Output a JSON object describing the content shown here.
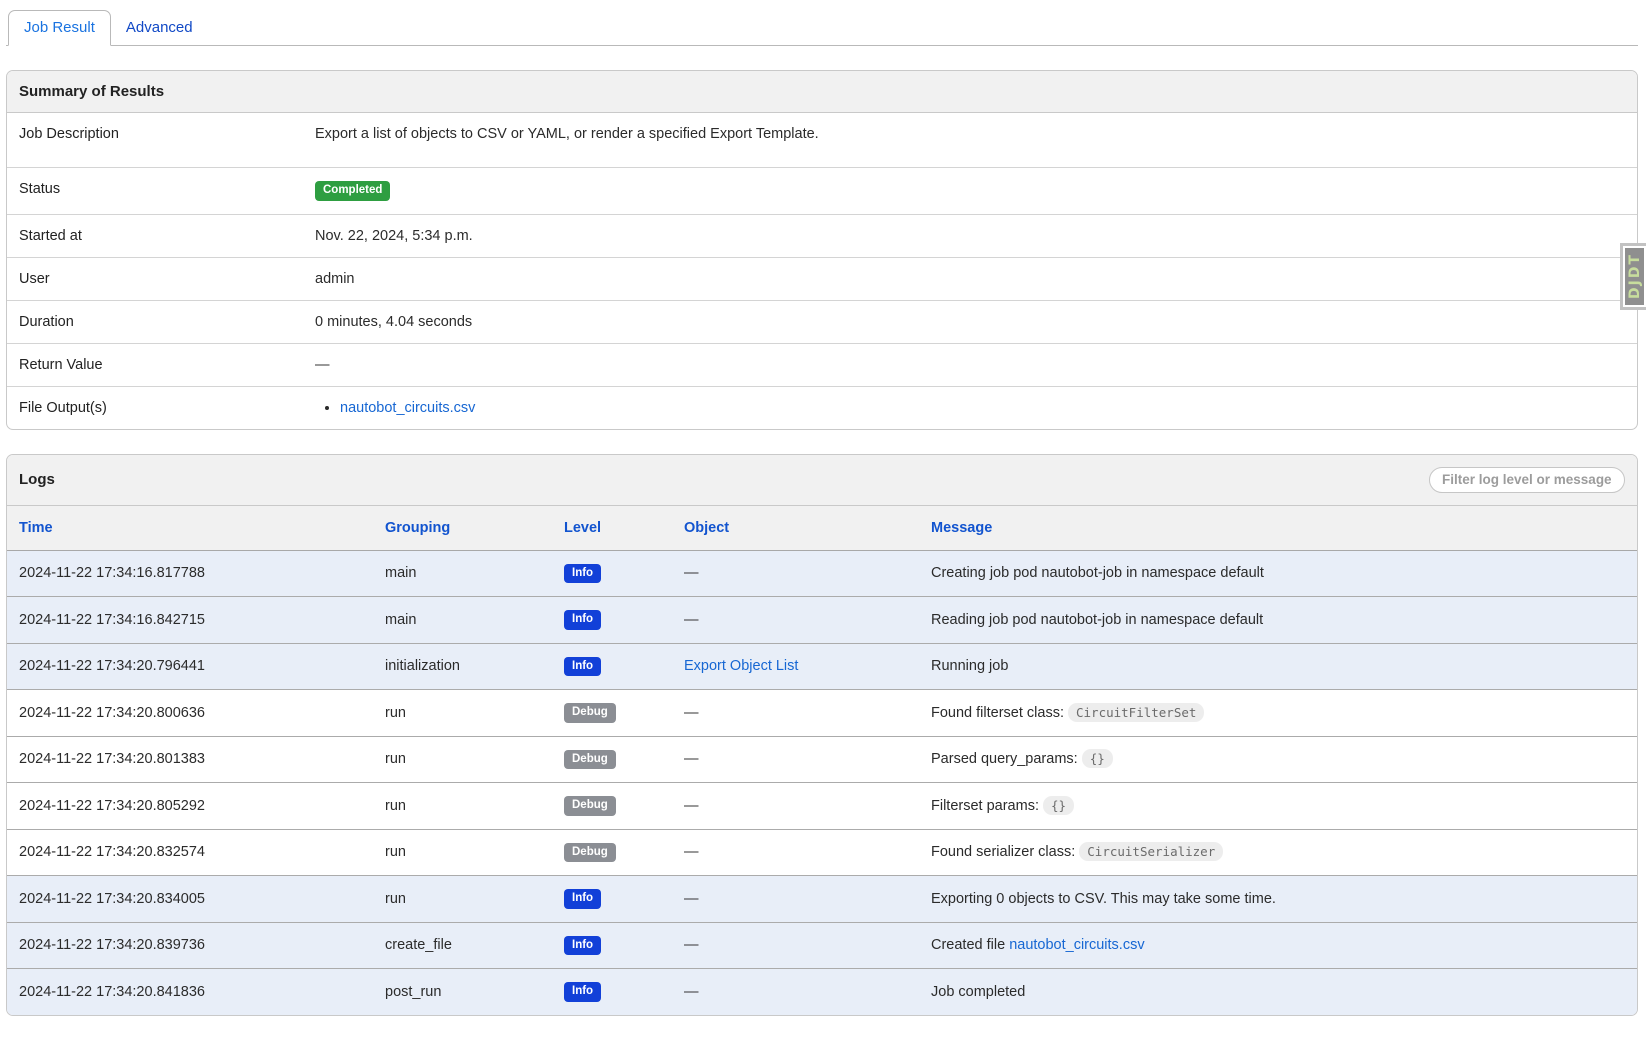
{
  "tabs": [
    {
      "label": "Job Result",
      "active": true
    },
    {
      "label": "Advanced",
      "active": false
    }
  ],
  "summary": {
    "title": "Summary of Results",
    "rows": [
      {
        "label": "Job Description",
        "type": "text",
        "value": "Export a list of objects to CSV or YAML, or render a specified Export Template.",
        "tall": true
      },
      {
        "label": "Status",
        "type": "badge",
        "value": "Completed"
      },
      {
        "label": "Started at",
        "type": "text",
        "value": "Nov. 22, 2024, 5:34 p.m."
      },
      {
        "label": "User",
        "type": "text",
        "value": "admin"
      },
      {
        "label": "Duration",
        "type": "text",
        "value": "0 minutes, 4.04 seconds"
      },
      {
        "label": "Return Value",
        "type": "dash",
        "value": "—"
      },
      {
        "label": "File Output(s)",
        "type": "files",
        "files": [
          "nautobot_circuits.csv"
        ]
      }
    ]
  },
  "logs": {
    "title": "Logs",
    "filter_placeholder": "Filter log level or message",
    "columns": [
      "Time",
      "Grouping",
      "Level",
      "Object",
      "Message"
    ],
    "entries": [
      {
        "time": "2024-11-22 17:34:16.817788",
        "grouping": "main",
        "level": "Info",
        "object": {
          "t": "dash"
        },
        "message": [
          {
            "t": "text",
            "v": "Creating job pod nautobot-job in namespace default"
          }
        ]
      },
      {
        "time": "2024-11-22 17:34:16.842715",
        "grouping": "main",
        "level": "Info",
        "object": {
          "t": "dash"
        },
        "message": [
          {
            "t": "text",
            "v": "Reading job pod nautobot-job in namespace default"
          }
        ]
      },
      {
        "time": "2024-11-22 17:34:20.796441",
        "grouping": "initialization",
        "level": "Info",
        "object": {
          "t": "link",
          "v": "Export Object List"
        },
        "message": [
          {
            "t": "text",
            "v": "Running job"
          }
        ]
      },
      {
        "time": "2024-11-22 17:34:20.800636",
        "grouping": "run",
        "level": "Debug",
        "object": {
          "t": "dash"
        },
        "message": [
          {
            "t": "text",
            "v": "Found filterset class: "
          },
          {
            "t": "code",
            "v": "CircuitFilterSet"
          }
        ]
      },
      {
        "time": "2024-11-22 17:34:20.801383",
        "grouping": "run",
        "level": "Debug",
        "object": {
          "t": "dash"
        },
        "message": [
          {
            "t": "text",
            "v": "Parsed query_params: "
          },
          {
            "t": "code",
            "v": "{}"
          }
        ]
      },
      {
        "time": "2024-11-22 17:34:20.805292",
        "grouping": "run",
        "level": "Debug",
        "object": {
          "t": "dash"
        },
        "message": [
          {
            "t": "text",
            "v": "Filterset params: "
          },
          {
            "t": "code",
            "v": "{}"
          }
        ]
      },
      {
        "time": "2024-11-22 17:34:20.832574",
        "grouping": "run",
        "level": "Debug",
        "object": {
          "t": "dash"
        },
        "message": [
          {
            "t": "text",
            "v": "Found serializer class: "
          },
          {
            "t": "code",
            "v": "CircuitSerializer"
          }
        ]
      },
      {
        "time": "2024-11-22 17:34:20.834005",
        "grouping": "run",
        "level": "Info",
        "object": {
          "t": "dash"
        },
        "message": [
          {
            "t": "text",
            "v": "Exporting 0 objects to CSV. This may take some time."
          }
        ]
      },
      {
        "time": "2024-11-22 17:34:20.839736",
        "grouping": "create_file",
        "level": "Info",
        "object": {
          "t": "dash"
        },
        "message": [
          {
            "t": "text",
            "v": "Created file "
          },
          {
            "t": "link",
            "v": "nautobot_circuits.csv"
          }
        ]
      },
      {
        "time": "2024-11-22 17:34:20.841836",
        "grouping": "post_run",
        "level": "Info",
        "object": {
          "t": "dash"
        },
        "message": [
          {
            "t": "text",
            "v": "Job completed"
          }
        ]
      }
    ]
  },
  "djdt": {
    "label": "DJDT"
  },
  "colors": {
    "status_completed": "#2e9e41",
    "level_info": "#1240d8",
    "level_debug": "#8b8e94",
    "info_row_bg": "#e8eef8",
    "link": "#1767d3",
    "active_tab": "#1a73e0"
  }
}
